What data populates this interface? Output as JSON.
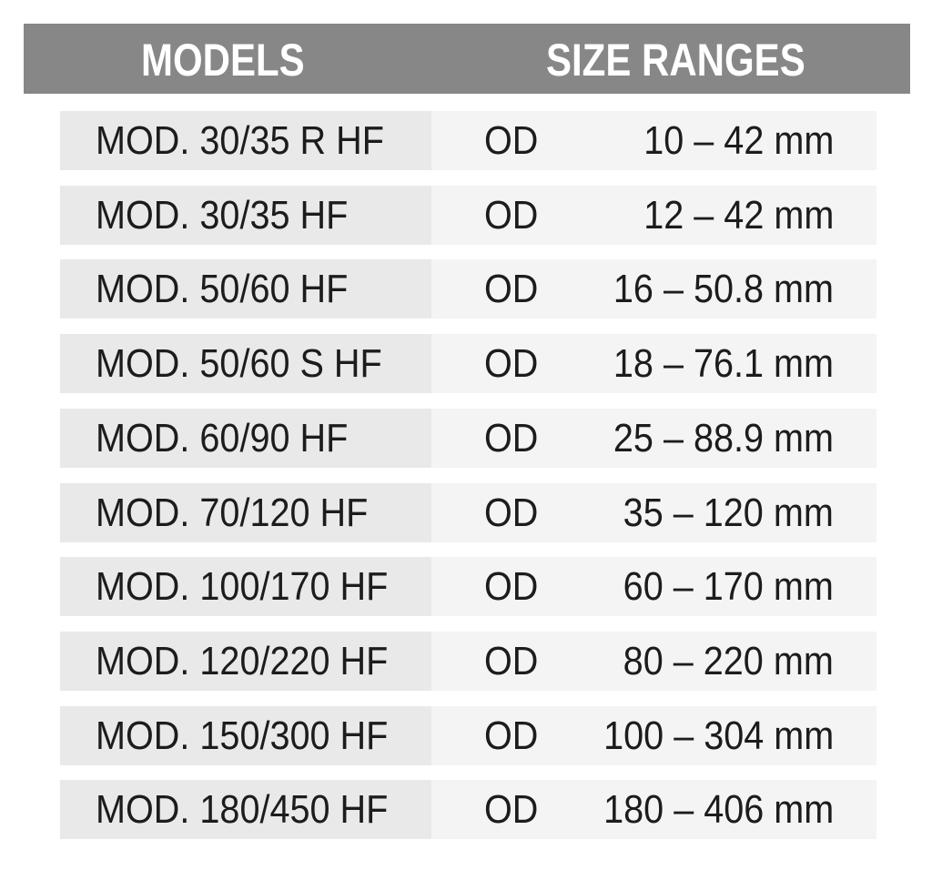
{
  "header": {
    "models": "MODELS",
    "size_ranges": "SIZE RANGES"
  },
  "colors": {
    "header_bg": "#878787",
    "model_cell_bg": "#e9e9e9",
    "size_cell_bg": "#f4f4f4",
    "text": "#1c1c1c"
  },
  "rows": [
    {
      "model": "MOD. 30/35 R HF",
      "type": "OD",
      "range": "10 – 42 mm"
    },
    {
      "model": "MOD. 30/35 HF",
      "type": "OD",
      "range": "12 – 42 mm"
    },
    {
      "model": "MOD. 50/60 HF",
      "type": "OD",
      "range": "16 – 50.8 mm"
    },
    {
      "model": "MOD. 50/60 S HF",
      "type": "OD",
      "range": "18 – 76.1 mm"
    },
    {
      "model": "MOD. 60/90 HF",
      "type": "OD",
      "range": "25 – 88.9 mm"
    },
    {
      "model": "MOD. 70/120 HF",
      "type": "OD",
      "range": "35 – 120 mm"
    },
    {
      "model": "MOD. 100/170 HF",
      "type": "OD",
      "range": "60 – 170 mm"
    },
    {
      "model": "MOD. 120/220 HF",
      "type": "OD",
      "range": "80 – 220 mm"
    },
    {
      "model": "MOD. 150/300 HF",
      "type": "OD",
      "range": "100 – 304 mm"
    },
    {
      "model": "MOD. 180/450 HF",
      "type": "OD",
      "range": "180 – 406 mm"
    }
  ]
}
